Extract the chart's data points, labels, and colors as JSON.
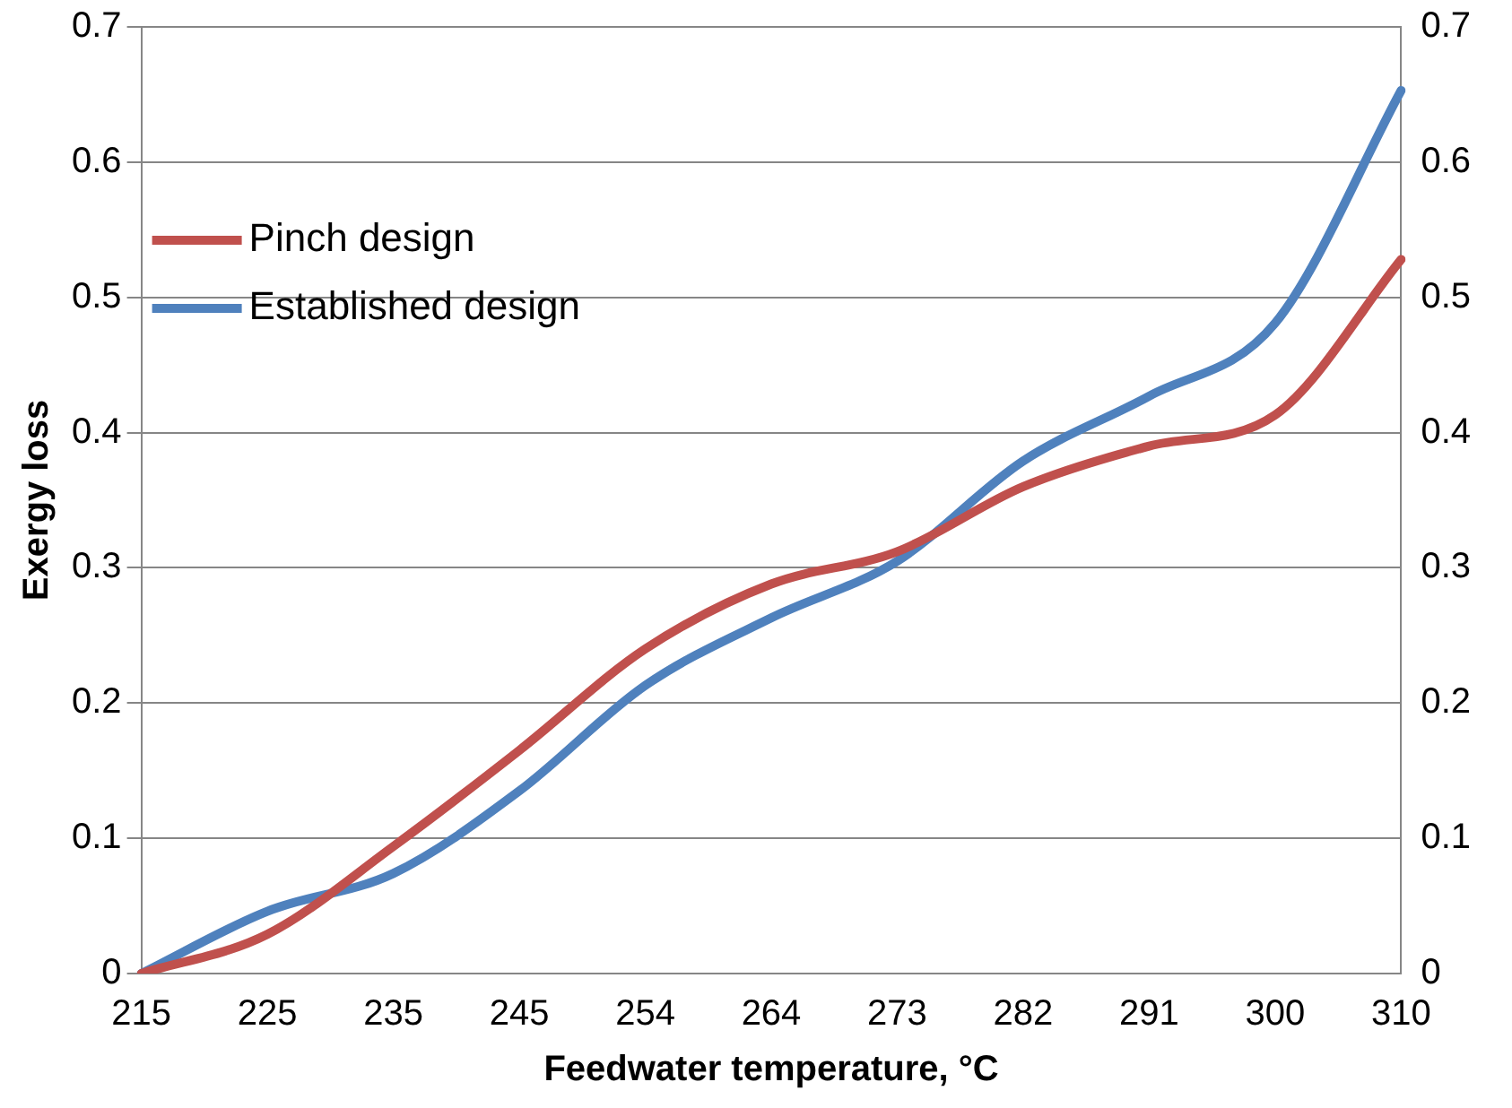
{
  "chart_data": {
    "type": "line",
    "xlabel": "Feedwater temperature, °C",
    "ylabel": "Exergy loss",
    "categories": [
      "215",
      "225",
      "235",
      "245",
      "254",
      "264",
      "273",
      "282",
      "291",
      "300",
      "310"
    ],
    "series": [
      {
        "name": "Pinch design",
        "color": "#c0504d",
        "values": [
          0,
          0.029,
          0.094,
          0.165,
          0.24,
          0.288,
          0.312,
          0.36,
          0.39,
          0.413,
          0.528
        ]
      },
      {
        "name": "Established design",
        "color": "#4f81bd",
        "values": [
          0,
          0.046,
          0.074,
          0.135,
          0.213,
          0.263,
          0.305,
          0.379,
          0.427,
          0.481,
          0.653
        ]
      }
    ],
    "ylim": [
      0,
      0.7
    ],
    "yticks": [
      0,
      0.1,
      0.2,
      0.3,
      0.4,
      0.5,
      0.6,
      0.7
    ],
    "y2lim": [
      0,
      0.7
    ],
    "y2ticks": [
      0,
      0.1,
      0.2,
      0.3,
      0.4,
      0.5,
      0.6,
      0.7
    ],
    "grid": "y",
    "legend": "top left",
    "marker": "none",
    "line_style": "solid"
  }
}
